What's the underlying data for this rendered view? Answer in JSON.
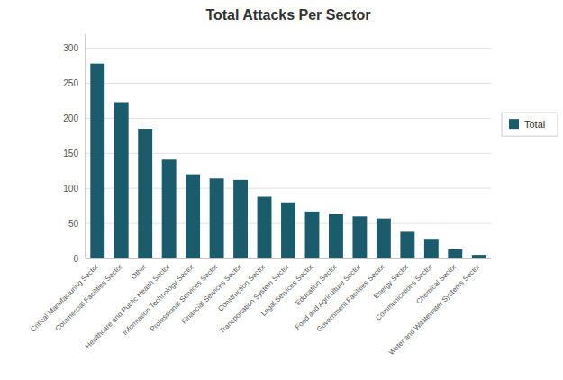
{
  "chart_data": {
    "type": "bar",
    "title": "Total Attacks Per Sector",
    "categories": [
      "Critical Manufacturing Sector",
      "Commercial Facilities Sector",
      "Other",
      "Healthcare and Public Health Sector",
      "Information Technology Sector",
      "Professional Services Sector",
      "Financial Services Sector",
      "Construction Sector",
      "Transportation System Sector",
      "Legal Services Sector",
      "Education Sector",
      "Food and Agriculture Sector",
      "Government Facilities Sector",
      "Energy Sector",
      "Communications Sector",
      "Chemical Sector",
      "Water and Wastewater Systems Sector"
    ],
    "series": [
      {
        "name": "Total",
        "color": "#1a5c6b",
        "values": [
          278,
          223,
          185,
          141,
          120,
          114,
          112,
          88,
          80,
          67,
          63,
          60,
          57,
          38,
          28,
          13,
          5
        ]
      }
    ],
    "ylim": [
      0,
      320
    ],
    "yticks": [
      0,
      50,
      100,
      150,
      200,
      250,
      300
    ],
    "grid": true,
    "legend": "right"
  }
}
